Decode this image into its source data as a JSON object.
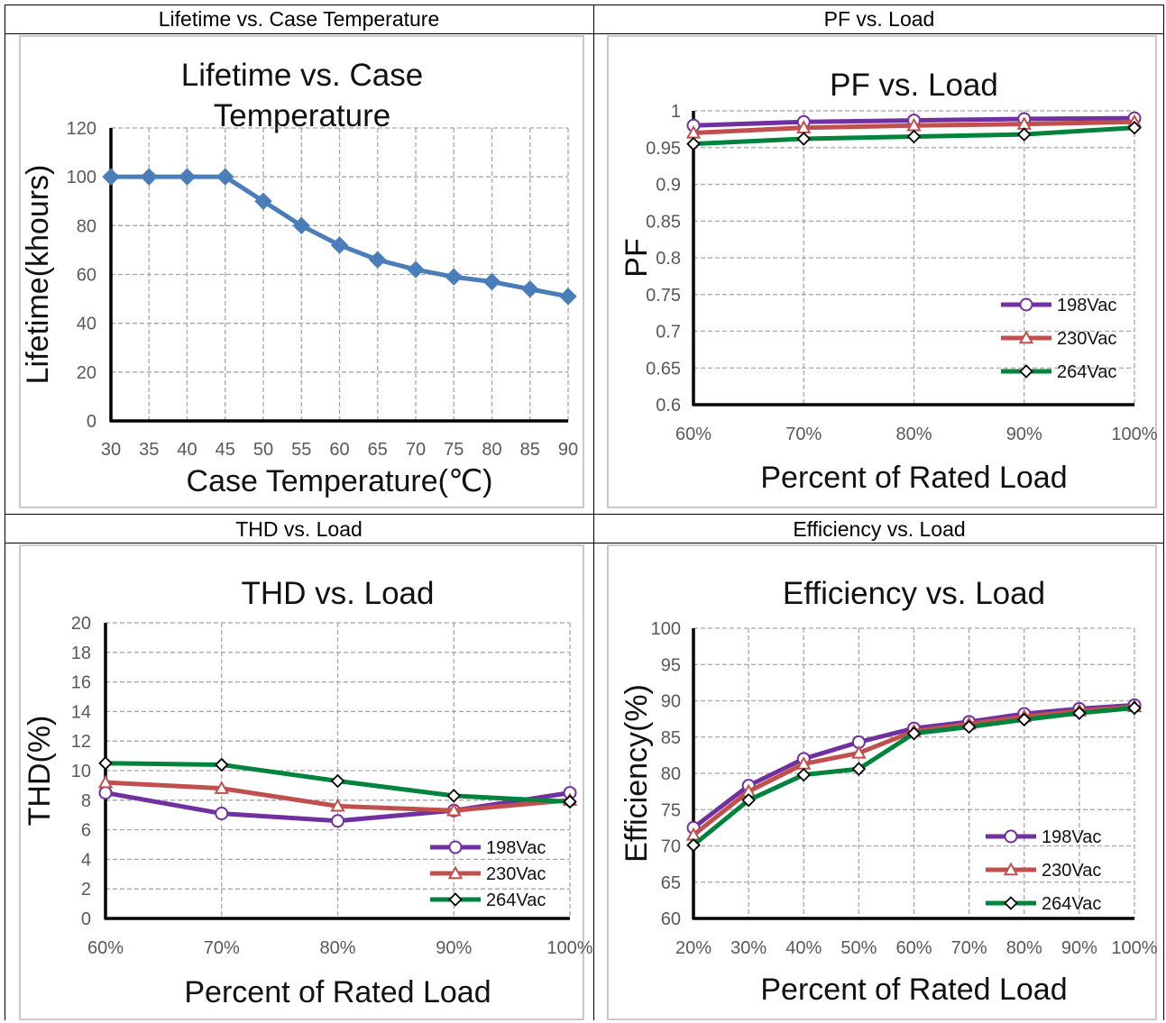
{
  "cells": {
    "lifetime": "Lifetime vs. Case Temperature",
    "pf": "PF vs. Load",
    "thd": "THD vs. Load",
    "efficiency": "Efficiency vs. Load"
  },
  "chart_data": [
    {
      "id": "lifetime",
      "type": "line",
      "title_lines": [
        "Lifetime vs. Case",
        "Temperature"
      ],
      "xlabel": "Case Temperature(℃)",
      "ylabel": "Lifetime(khours)",
      "x": [
        30,
        35,
        40,
        45,
        50,
        55,
        60,
        65,
        70,
        75,
        80,
        85,
        90
      ],
      "xticks": [
        "30",
        "35",
        "40",
        "45",
        "50",
        "55",
        "60",
        "65",
        "70",
        "75",
        "80",
        "85",
        "90"
      ],
      "ylim": [
        0,
        120
      ],
      "yticks": [
        "0",
        "20",
        "40",
        "60",
        "80",
        "100",
        "120"
      ],
      "grid": true,
      "series": [
        {
          "values": [
            100,
            100,
            100,
            100,
            90,
            80,
            72,
            66,
            62,
            59,
            57,
            54,
            51
          ],
          "color": "#4a7ebb",
          "marker": "diamond-filled"
        }
      ]
    },
    {
      "id": "pf",
      "type": "line",
      "title_lines": [
        "PF vs. Load"
      ],
      "xlabel": "Percent of Rated Load",
      "ylabel": "PF",
      "xticks": [
        "60%",
        "70%",
        "80%",
        "90%",
        "100%"
      ],
      "ylim": [
        0.6,
        1
      ],
      "yticks": [
        "0.6",
        "0.65",
        "0.7",
        "0.75",
        "0.8",
        "0.85",
        "0.9",
        "0.95",
        "1"
      ],
      "grid": true,
      "legend_position": "lower-right",
      "series": [
        {
          "name": "198Vac",
          "values": [
            0.98,
            0.985,
            0.987,
            0.989,
            0.99
          ],
          "color": "#7030a0",
          "marker": "circle"
        },
        {
          "name": "230Vac",
          "values": [
            0.97,
            0.977,
            0.98,
            0.982,
            0.985
          ],
          "color": "#c0504d",
          "marker": "triangle"
        },
        {
          "name": "264Vac",
          "values": [
            0.955,
            0.962,
            0.965,
            0.968,
            0.977
          ],
          "color": "#00843d",
          "marker": "diamond"
        }
      ]
    },
    {
      "id": "thd",
      "type": "line",
      "title_lines": [
        "THD vs. Load"
      ],
      "xlabel": "Percent of Rated Load",
      "ylabel": "THD(%)",
      "xticks": [
        "60%",
        "70%",
        "80%",
        "90%",
        "100%"
      ],
      "ylim": [
        0,
        20
      ],
      "yticks": [
        "0",
        "2",
        "4",
        "6",
        "8",
        "10",
        "12",
        "14",
        "16",
        "18",
        "20"
      ],
      "grid": true,
      "legend_position": "lower-right",
      "series": [
        {
          "name": "198Vac",
          "values": [
            8.5,
            7.1,
            6.6,
            7.3,
            8.5
          ],
          "color": "#7030a0",
          "marker": "circle"
        },
        {
          "name": "230Vac",
          "values": [
            9.2,
            8.8,
            7.6,
            7.3,
            8.0
          ],
          "color": "#c0504d",
          "marker": "triangle"
        },
        {
          "name": "264Vac",
          "values": [
            10.5,
            10.4,
            9.3,
            8.3,
            7.9
          ],
          "color": "#00843d",
          "marker": "diamond"
        }
      ]
    },
    {
      "id": "efficiency",
      "type": "line",
      "title_lines": [
        "Efficiency vs. Load"
      ],
      "xlabel": "Percent of Rated Load",
      "ylabel": "Efficiency(%)",
      "xticks": [
        "20%",
        "30%",
        "40%",
        "50%",
        "60%",
        "70%",
        "80%",
        "90%",
        "100%"
      ],
      "ylim": [
        60,
        100
      ],
      "yticks": [
        "60",
        "65",
        "70",
        "75",
        "80",
        "85",
        "90",
        "95",
        "100"
      ],
      "grid": true,
      "legend_position": "lower-right",
      "series": [
        {
          "name": "198Vac",
          "values": [
            72.5,
            78.3,
            82.0,
            84.3,
            86.2,
            87.1,
            88.2,
            88.9,
            89.4
          ],
          "color": "#7030a0",
          "marker": "circle"
        },
        {
          "name": "230Vac",
          "values": [
            71.5,
            77.5,
            81.3,
            82.8,
            85.8,
            86.8,
            87.8,
            88.6,
            89.2
          ],
          "color": "#c0504d",
          "marker": "triangle"
        },
        {
          "name": "264Vac",
          "values": [
            70.1,
            76.3,
            79.8,
            80.6,
            85.5,
            86.4,
            87.4,
            88.3,
            89.0
          ],
          "color": "#00843d",
          "marker": "diamond"
        }
      ]
    }
  ]
}
